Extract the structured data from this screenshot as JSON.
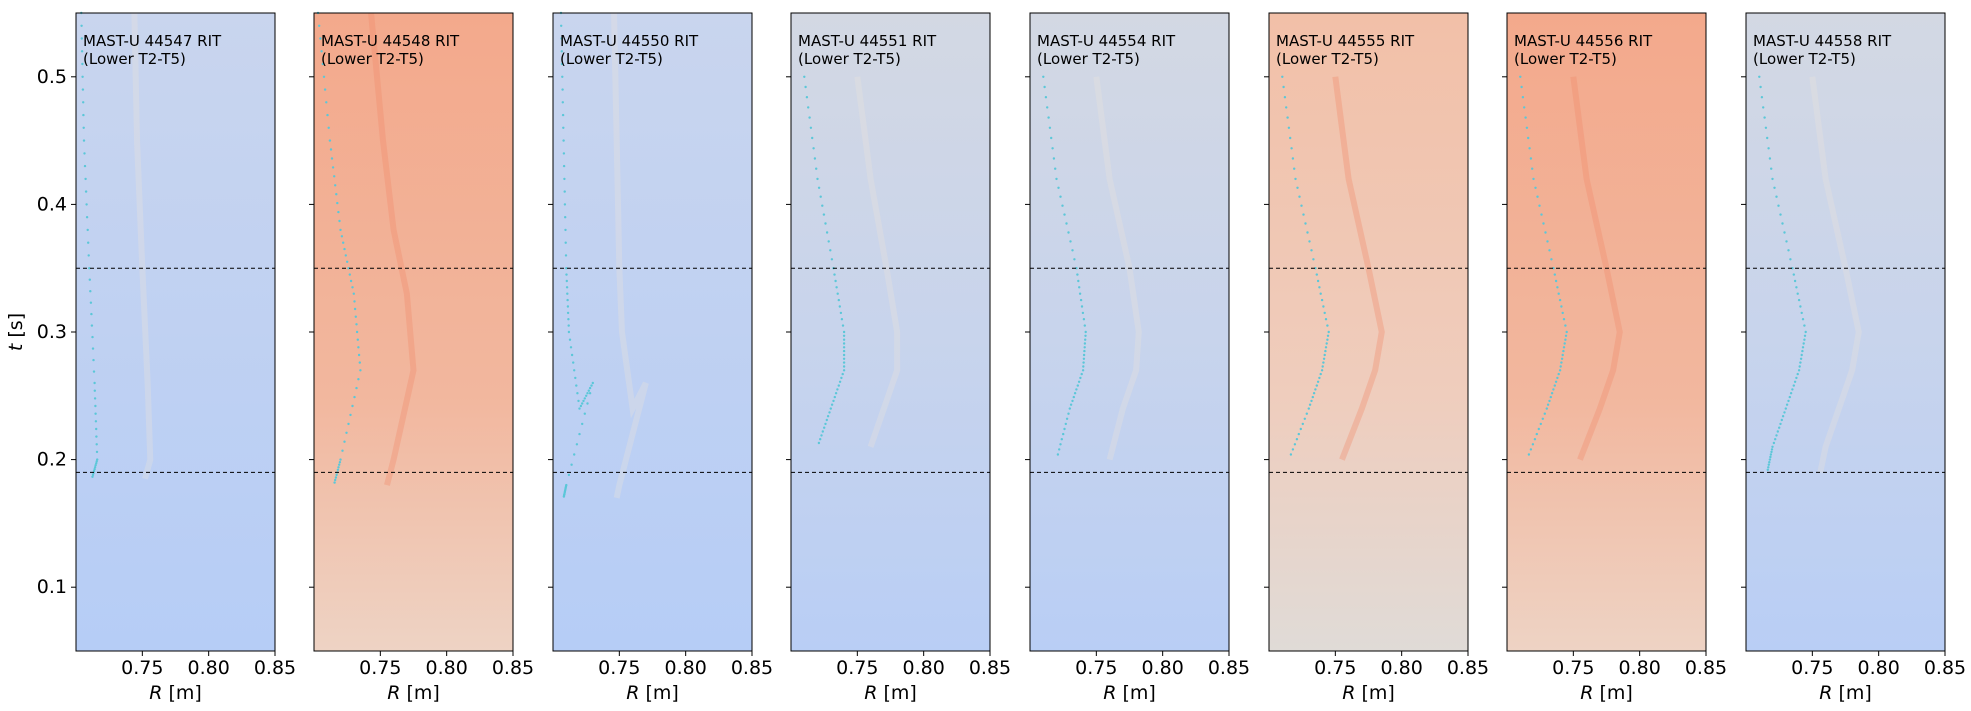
{
  "chart_data": {
    "type": "heatmap",
    "description_colormap": "coolwarm",
    "shared_y": {
      "label_var": "t",
      "label_unit": " [s]",
      "range": [
        0.05,
        0.55
      ],
      "ticks": [
        "0.1",
        "0.2",
        "0.3",
        "0.4",
        "0.5"
      ],
      "tick_values": [
        0.1,
        0.2,
        0.3,
        0.4,
        0.5
      ]
    },
    "x": {
      "label_var": "R",
      "label_unit": " [m]",
      "range": [
        0.7,
        0.85
      ],
      "ticks": [
        "0.75",
        "0.80",
        "0.85"
      ],
      "tick_values": [
        0.75,
        0.8,
        0.85
      ]
    },
    "reference_lines_t": [
      0.35,
      0.19
    ],
    "colors": {
      "cool": "#b9d0f5",
      "cool_light": "#cad7ec",
      "neutral": "#dcdcdc",
      "warm": "#f3b79c",
      "warm_strong": "#f1a385",
      "marker": "#5bc7d8"
    },
    "panels": [
      {
        "title_line1": "MAST-U 44547 RIT",
        "title_line2": "(Lower T2-T5)",
        "tone": "cool",
        "marker_front": [
          [
            0.704,
            0.55
          ],
          [
            0.706,
            0.45
          ],
          [
            0.71,
            0.35
          ],
          [
            0.714,
            0.26
          ],
          [
            0.716,
            0.2
          ],
          [
            0.712,
            0.185
          ]
        ]
      },
      {
        "title_line1": "MAST-U 44548 RIT",
        "title_line2": "(Lower T2-T5)",
        "tone": "warm",
        "marker_front": [
          [
            0.703,
            0.55
          ],
          [
            0.712,
            0.45
          ],
          [
            0.72,
            0.38
          ],
          [
            0.73,
            0.33
          ],
          [
            0.735,
            0.27
          ],
          [
            0.72,
            0.2
          ],
          [
            0.715,
            0.18
          ]
        ]
      },
      {
        "title_line1": "MAST-U 44550 RIT",
        "title_line2": "(Lower T2-T5)",
        "tone": "cool",
        "marker_front": [
          [
            0.706,
            0.55
          ],
          [
            0.708,
            0.45
          ],
          [
            0.71,
            0.35
          ],
          [
            0.712,
            0.3
          ],
          [
            0.72,
            0.24
          ],
          [
            0.73,
            0.26
          ],
          [
            0.71,
            0.18
          ],
          [
            0.708,
            0.17
          ]
        ]
      },
      {
        "title_line1": "MAST-U 44551 RIT",
        "title_line2": "(Lower T2-T5)",
        "tone": "cool_light",
        "marker_front": [
          [
            0.71,
            0.5
          ],
          [
            0.72,
            0.42
          ],
          [
            0.732,
            0.35
          ],
          [
            0.74,
            0.3
          ],
          [
            0.74,
            0.27
          ],
          [
            0.73,
            0.24
          ],
          [
            0.72,
            0.21
          ]
        ]
      },
      {
        "title_line1": "MAST-U 44554 RIT",
        "title_line2": "(Lower T2-T5)",
        "tone": "cool_light",
        "marker_front": [
          [
            0.71,
            0.5
          ],
          [
            0.72,
            0.42
          ],
          [
            0.735,
            0.35
          ],
          [
            0.742,
            0.3
          ],
          [
            0.74,
            0.27
          ],
          [
            0.73,
            0.24
          ],
          [
            0.72,
            0.2
          ]
        ]
      },
      {
        "title_line1": "MAST-U 44555 RIT",
        "title_line2": "(Lower T2-T5)",
        "tone": "warm_strong",
        "marker_front": [
          [
            0.71,
            0.5
          ],
          [
            0.72,
            0.42
          ],
          [
            0.735,
            0.35
          ],
          [
            0.745,
            0.3
          ],
          [
            0.74,
            0.27
          ],
          [
            0.73,
            0.24
          ],
          [
            0.715,
            0.2
          ]
        ]
      },
      {
        "title_line1": "MAST-U 44556 RIT",
        "title_line2": "(Lower T2-T5)",
        "tone": "warm",
        "marker_front": [
          [
            0.71,
            0.5
          ],
          [
            0.72,
            0.42
          ],
          [
            0.735,
            0.35
          ],
          [
            0.745,
            0.3
          ],
          [
            0.74,
            0.27
          ],
          [
            0.73,
            0.24
          ],
          [
            0.715,
            0.2
          ]
        ]
      },
      {
        "title_line1": "MAST-U 44558 RIT",
        "title_line2": "(Lower T2-T5)",
        "tone": "cool_light",
        "marker_front": [
          [
            0.71,
            0.5
          ],
          [
            0.72,
            0.42
          ],
          [
            0.735,
            0.35
          ],
          [
            0.745,
            0.3
          ],
          [
            0.74,
            0.27
          ],
          [
            0.73,
            0.24
          ],
          [
            0.72,
            0.21
          ],
          [
            0.716,
            0.19
          ]
        ]
      }
    ]
  }
}
